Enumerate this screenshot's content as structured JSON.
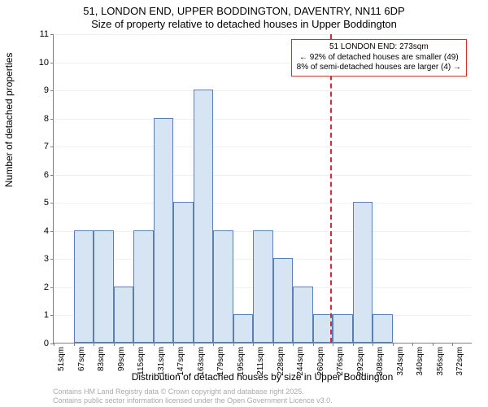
{
  "chart": {
    "type": "histogram",
    "title_line1": "51, LONDON END, UPPER BODDINGTON, DAVENTRY, NN11 6DP",
    "title_line2": "Size of property relative to detached houses in Upper Boddington",
    "title_fontsize": 13,
    "ylabel": "Number of detached properties",
    "xlabel": "Distribution of detached houses by size in Upper Boddington",
    "label_fontsize": 12,
    "x_categories": [
      "51sqm",
      "67sqm",
      "83sqm",
      "99sqm",
      "115sqm",
      "131sqm",
      "147sqm",
      "163sqm",
      "179sqm",
      "195sqm",
      "211sqm",
      "228sqm",
      "244sqm",
      "260sqm",
      "276sqm",
      "292sqm",
      "308sqm",
      "324sqm",
      "340sqm",
      "356sqm",
      "372sqm"
    ],
    "x_step_sqm": 16,
    "x_min_sqm": 51,
    "values": [
      0,
      4,
      4,
      2,
      4,
      8,
      5,
      9,
      4,
      1,
      4,
      3,
      2,
      1,
      1,
      5,
      1,
      0,
      0,
      0,
      0
    ],
    "ylim": [
      0,
      11
    ],
    "ytick_step": 1,
    "bar_fill": "#d7e4f4",
    "bar_stroke": "#5a7fb5",
    "background_color": "#ffffff",
    "grid_color": "#f0f0f0",
    "axis_color": "#808080",
    "marker_line": {
      "value_sqm": 273,
      "color": "#d03030",
      "dash": true
    },
    "annotation": {
      "lines": [
        "51 LONDON END: 273sqm",
        "← 92% of detached houses are smaller (49)",
        "8% of semi-detached houses are larger (4) →"
      ],
      "border_color": "#d03030",
      "fontsize": 10
    },
    "attribution": {
      "line1": "Contains HM Land Registry data © Crown copyright and database right 2025.",
      "line2": "Contains public sector information licensed under the Open Government Licence v3.0.",
      "color": "#aaaaaa",
      "fontsize": 9
    }
  }
}
